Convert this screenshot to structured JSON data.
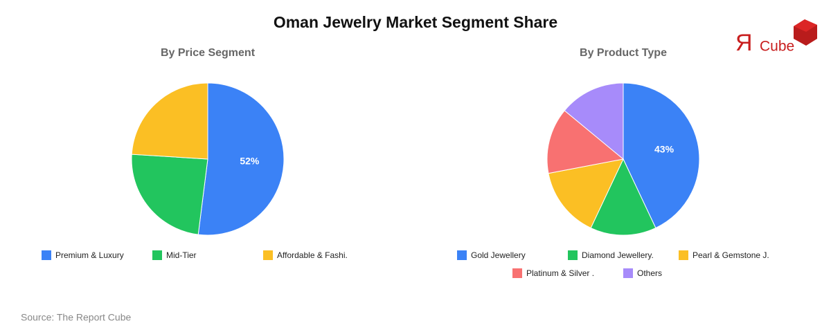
{
  "title": "Oman Jewelry Market Segment Share",
  "source": "Source: The Report Cube",
  "logo": {
    "mark": "Я",
    "text": "Cube"
  },
  "chart_data": [
    {
      "type": "pie",
      "title": "By Price Segment",
      "categories": [
        "Premium & Luxury",
        "Mid-Tier",
        "Affordable & Fashi."
      ],
      "values": [
        52,
        24,
        24
      ],
      "value_labels": [
        "52%",
        null,
        null
      ],
      "colors": [
        "#3b82f6",
        "#22c55e",
        "#fbbf24"
      ]
    },
    {
      "type": "pie",
      "title": "By Product Type",
      "categories": [
        "Gold Jewellery",
        "Diamond Jewellery.",
        "Pearl & Gemstone J.",
        "Platinum & Silver .",
        "Others"
      ],
      "values": [
        43,
        14,
        15,
        14,
        14
      ],
      "value_labels": [
        "43%",
        null,
        null,
        null,
        null
      ],
      "colors": [
        "#3b82f6",
        "#22c55e",
        "#fbbf24",
        "#f87171",
        "#a78bfa"
      ]
    }
  ]
}
